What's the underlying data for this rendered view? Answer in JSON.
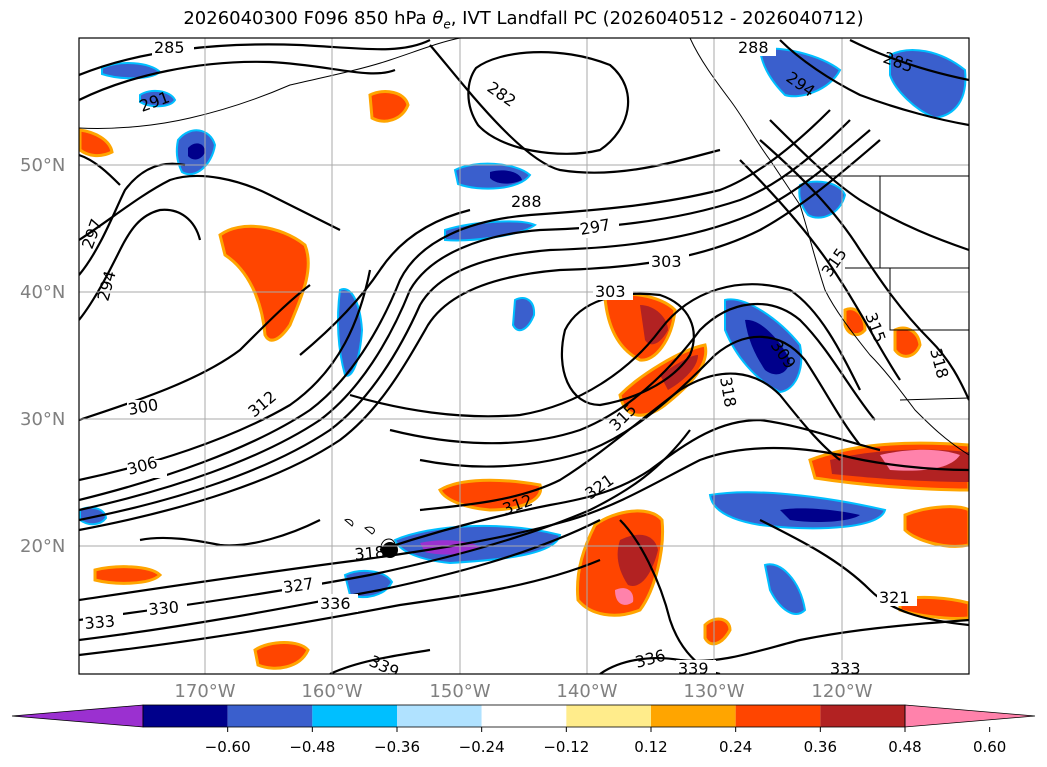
{
  "title_main": "2026040300 F096 850 hPa ",
  "title_symbol": "θ",
  "title_sub": "e",
  "title_rest": ", IVT Landfall PC (2026040512 - 2026040712)",
  "lat_labels": [
    "50°N",
    "40°N",
    "30°N",
    "20°N"
  ],
  "lon_labels": [
    "170°W",
    "160°W",
    "150°W",
    "140°W",
    "130°W",
    "120°W"
  ],
  "colorbar": {
    "ticks": [
      "−0.60",
      "−0.48",
      "−0.36",
      "−0.24",
      "−0.12",
      "0.12",
      "0.24",
      "0.36",
      "0.48",
      "0.60"
    ],
    "colors": [
      "#9b30d0",
      "#00008b",
      "#3a5fcd",
      "#00bfff",
      "#b0e2ff",
      "#ffffff",
      "#ffec8b",
      "#ffa500",
      "#ff4500",
      "#b22222",
      "#ff82ab"
    ]
  },
  "contours": {
    "labels": [
      "285",
      "288",
      "294",
      "285",
      "282",
      "291",
      "288",
      "297",
      "297",
      "294",
      "303",
      "303",
      "300",
      "312",
      "306",
      "315",
      "309",
      "318",
      "315",
      "315",
      "318",
      "321",
      "312",
      "318",
      "327",
      "330",
      "333",
      "336",
      "339",
      "336",
      "339",
      "333",
      "321"
    ]
  }
}
